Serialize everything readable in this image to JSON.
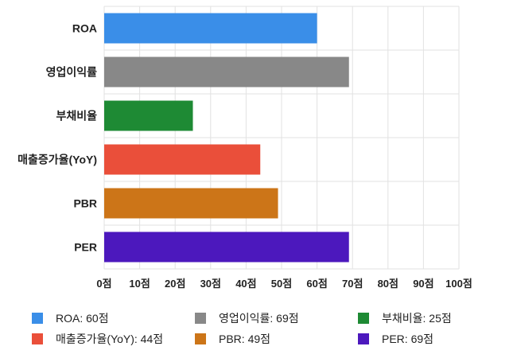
{
  "chart_data": {
    "type": "bar",
    "orientation": "horizontal",
    "categories": [
      "ROA",
      "영업이익률",
      "부채비율",
      "매출증가율(YoY)",
      "PBR",
      "PER"
    ],
    "values": [
      60,
      69,
      25,
      44,
      49,
      69
    ],
    "colors": [
      "#3a8ee8",
      "#888888",
      "#1e8a34",
      "#ea4f3a",
      "#cc7518",
      "#4c18bd"
    ],
    "xlim": [
      0,
      100
    ],
    "x_ticks": [
      0,
      10,
      20,
      30,
      40,
      50,
      60,
      70,
      80,
      90,
      100
    ],
    "x_tick_labels": [
      "0점",
      "10점",
      "20점",
      "30점",
      "40점",
      "50점",
      "60점",
      "70점",
      "80점",
      "90점",
      "100점"
    ],
    "grid": true,
    "legend_position": "bottom",
    "legend": [
      {
        "label": "ROA: 60점",
        "color": "#3a8ee8"
      },
      {
        "label": "영업이익률: 69점",
        "color": "#888888"
      },
      {
        "label": "부채비율: 25점",
        "color": "#1e8a34"
      },
      {
        "label": "매출증가율(YoY): 44점",
        "color": "#ea4f3a"
      },
      {
        "label": "PBR: 49점",
        "color": "#cc7518"
      },
      {
        "label": "PER: 69점",
        "color": "#4c18bd"
      }
    ]
  }
}
